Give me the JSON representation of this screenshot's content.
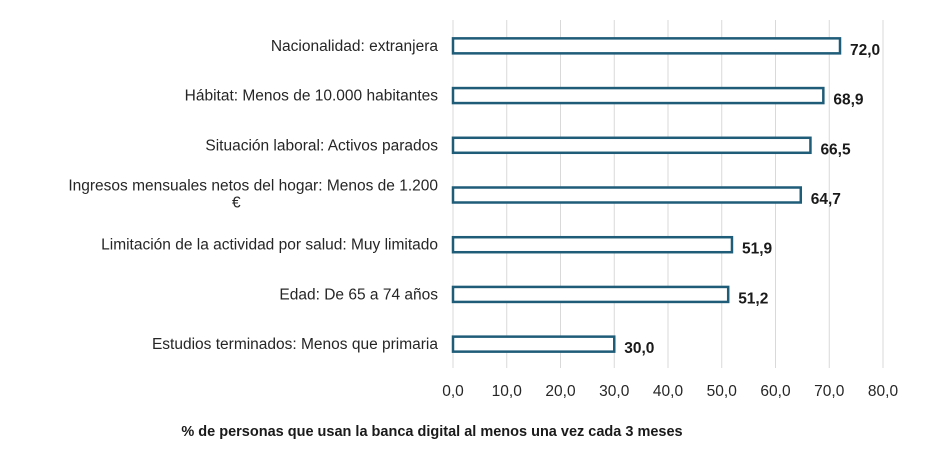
{
  "colors": {
    "bar_stroke": "#1f5c78",
    "grid": "#d9d9d9",
    "text": "#262626"
  },
  "chart_data": {
    "type": "bar",
    "orientation": "horizontal",
    "categories": [
      "Nacionalidad: extranjera",
      "Hábitat: Menos de 10.000 habitantes",
      "Situación laboral: Activos parados",
      [
        "Ingresos mensuales netos del hogar: Menos de 1.200",
        "€"
      ],
      "Limitación de la actividad por salud: Muy limitado",
      "Edad: De 65 a 74 años",
      "Estudios terminados: Menos que primaria"
    ],
    "values": [
      72.0,
      68.9,
      66.5,
      64.7,
      51.9,
      51.2,
      30.0
    ],
    "data_labels": [
      "72,0",
      "68,9",
      "66,5",
      "64,7",
      "51,9",
      "51,2",
      "30,0"
    ],
    "xlim": [
      0,
      80
    ],
    "x_ticks": [
      0,
      10,
      20,
      30,
      40,
      50,
      60,
      70,
      80
    ],
    "x_tick_labels": [
      "0,0",
      "10,0",
      "20,0",
      "30,0",
      "40,0",
      "50,0",
      "60,0",
      "70,0",
      "80,0"
    ],
    "xlabel": "% de personas que usan la banca digital al menos una vez cada 3 meses",
    "ylabel": "",
    "title": "",
    "grid": "vertical"
  }
}
